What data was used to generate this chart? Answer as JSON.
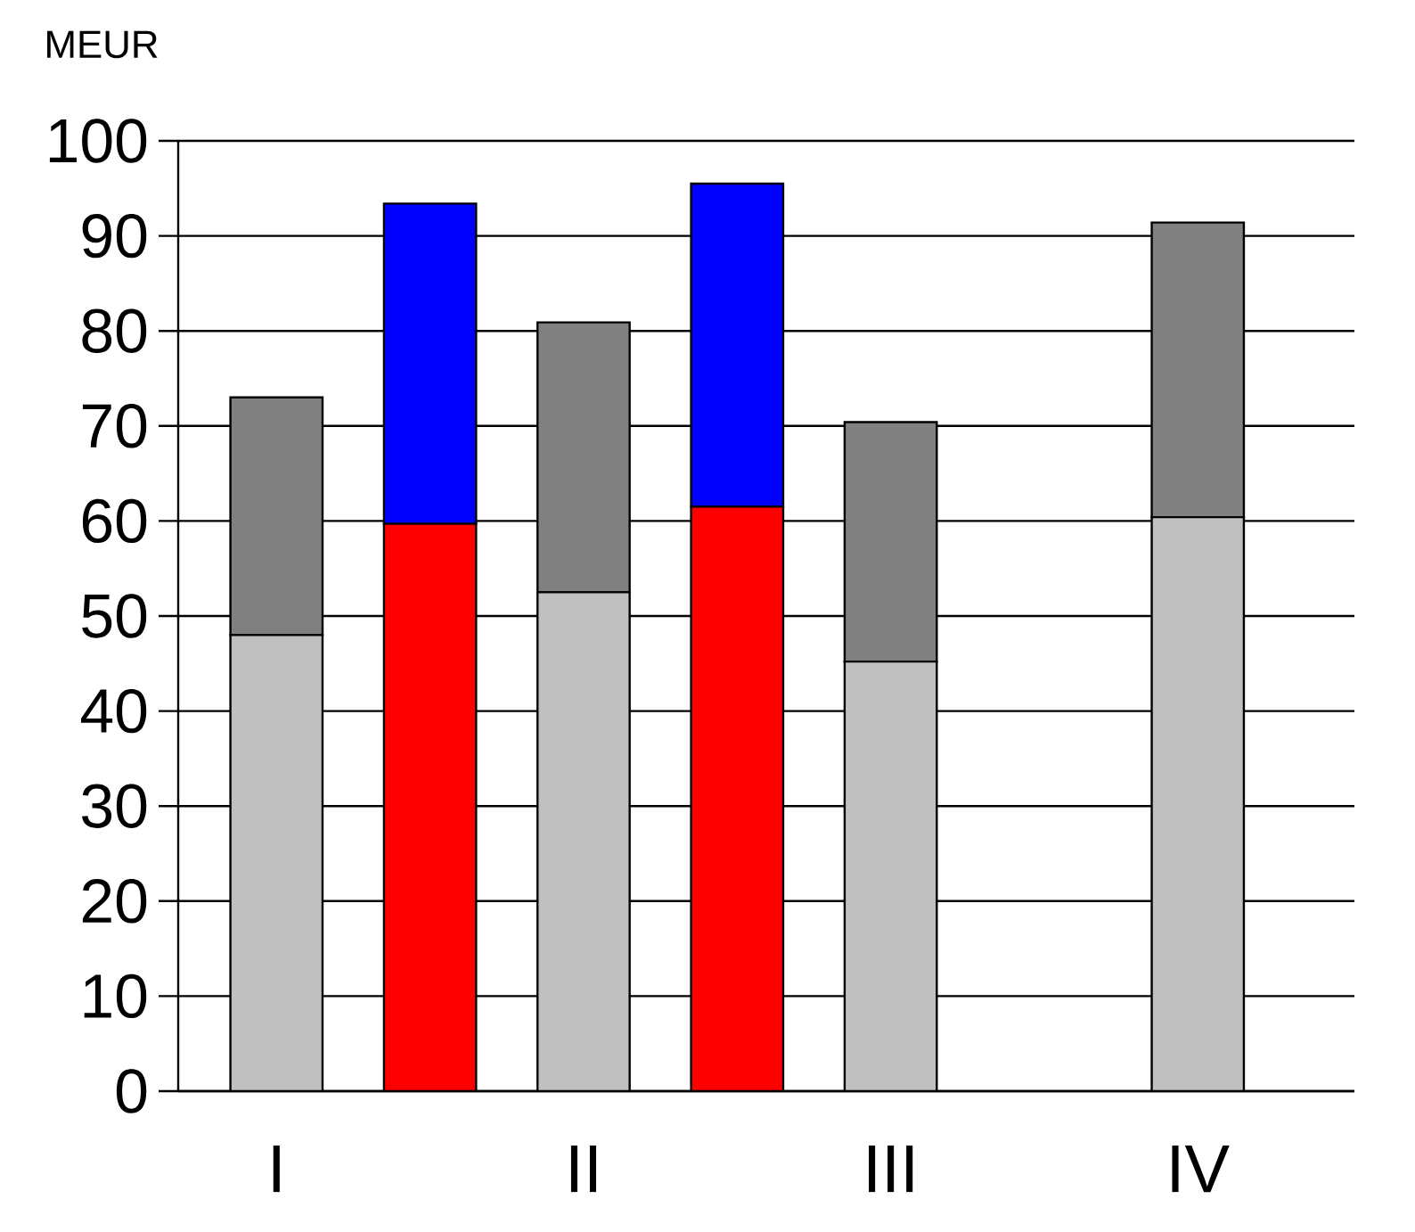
{
  "chart_data": {
    "type": "bar",
    "stacked": true,
    "ylabel": "MEUR",
    "categories": [
      "I",
      null,
      "II",
      null,
      "III",
      null,
      "IV"
    ],
    "ylim": [
      0,
      100
    ],
    "yticks": [
      0,
      10,
      20,
      30,
      40,
      50,
      60,
      70,
      80,
      90,
      100
    ],
    "grid": "y",
    "series": [
      {
        "color": "#c0c0c0",
        "values": [
          48,
          null,
          52.5,
          null,
          45.2,
          null,
          60.4
        ]
      },
      {
        "color": "#808080",
        "values": [
          25,
          null,
          28.4,
          null,
          25.2,
          null,
          31
        ]
      },
      {
        "color": "#ff0000",
        "values": [
          null,
          59.7,
          null,
          61.5,
          null,
          null,
          null
        ]
      },
      {
        "color": "#0000ff",
        "values": [
          null,
          33.7,
          null,
          34,
          null,
          null,
          null
        ]
      }
    ]
  }
}
